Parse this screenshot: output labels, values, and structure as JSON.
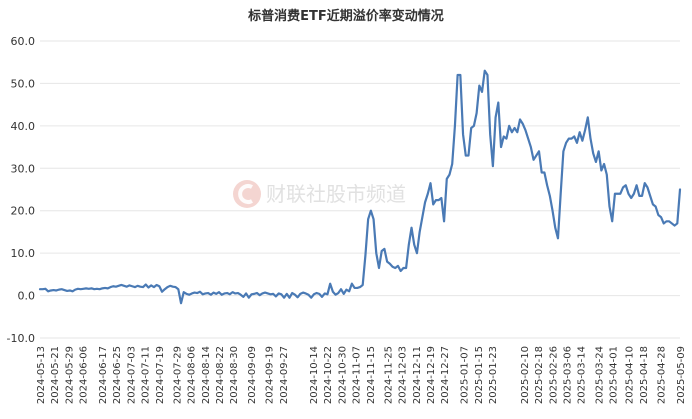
{
  "chart_data": {
    "type": "line",
    "title": "标普消费ETF近期溢价率变动情况",
    "xlabel": "",
    "ylabel": "",
    "ylim": [
      -10,
      60
    ],
    "yticks": [
      "-10.0",
      "0.0",
      "10.0",
      "20.0",
      "30.0",
      "40.0",
      "50.0",
      "60.0"
    ],
    "x_start": "2024-05-13",
    "x_end": "2025-05-09",
    "x_ticks": [
      "2024-05-13",
      "2024-05-21",
      "2024-05-29",
      "2024-06-06",
      "2024-06-17",
      "2024-06-25",
      "2024-07-03",
      "2024-07-11",
      "2024-07-19",
      "2024-07-29",
      "2024-08-06",
      "2024-08-14",
      "2024-08-22",
      "2024-08-30",
      "2024-09-09",
      "2024-09-19",
      "2024-09-27",
      "2024-10-14",
      "2024-10-22",
      "2024-10-30",
      "2024-11-07",
      "2024-11-15",
      "2024-11-25",
      "2024-12-03",
      "2024-12-11",
      "2024-12-19",
      "2024-12-27",
      "2025-01-07",
      "2025-01-15",
      "2025-01-23",
      "2025-02-10",
      "2025-02-18",
      "2025-02-26",
      "2025-03-06",
      "2025-03-14",
      "2025-03-24",
      "2025-04-01",
      "2025-04-10",
      "2025-04-18",
      "2025-04-28",
      "2025-05-09"
    ],
    "grid": true,
    "legend": "none",
    "color": "#4a7ab5",
    "series": [
      {
        "values": [
          1.5,
          1.5,
          1.6,
          1.0,
          1.2,
          1.3,
          1.2,
          1.4,
          1.5,
          1.3,
          1.1,
          1.2,
          1.0,
          1.4,
          1.6,
          1.5,
          1.6,
          1.7,
          1.6,
          1.7,
          1.5,
          1.6,
          1.5,
          1.7,
          1.8,
          1.7,
          2.0,
          2.2,
          2.1,
          2.3,
          2.5,
          2.3,
          2.1,
          2.4,
          2.2,
          2.0,
          2.3,
          2.1,
          2.0,
          2.6,
          1.9,
          2.4,
          2.0,
          2.5,
          2.2,
          0.9,
          1.5,
          2.0,
          2.3,
          2.1,
          2.0,
          1.5,
          -1.8,
          0.8,
          0.4,
          0.2,
          0.5,
          0.7,
          0.6,
          0.9,
          0.3,
          0.5,
          0.6,
          0.2,
          0.7,
          0.4,
          0.8,
          0.2,
          0.5,
          0.6,
          0.3,
          0.8,
          0.5,
          0.6,
          0.2,
          -0.3,
          0.5,
          -0.5,
          0.3,
          0.4,
          0.6,
          0.1,
          0.5,
          0.7,
          0.5,
          0.3,
          0.4,
          -0.2,
          0.5,
          0.3,
          -0.5,
          0.4,
          -0.5,
          0.6,
          0.2,
          -0.4,
          0.4,
          0.7,
          0.5,
          0.2,
          -0.5,
          0.3,
          0.6,
          0.4,
          -0.3,
          0.5,
          0.3,
          2.8,
          0.9,
          0.2,
          0.6,
          1.5,
          0.4,
          1.4,
          1.0,
          2.8,
          1.8,
          1.8,
          2.0,
          2.5,
          9.5,
          18.0,
          20.0,
          18.0,
          10.0,
          6.5,
          10.5,
          11.0,
          8.0,
          7.5,
          6.8,
          6.5,
          7.0,
          5.8,
          6.5,
          6.5,
          12.0,
          16.0,
          12.0,
          10.0,
          15.0,
          18.5,
          22.0,
          24.0,
          26.5,
          21.5,
          22.5,
          22.5,
          23.0,
          17.5,
          27.5,
          28.5,
          31.0,
          40.0,
          52.0,
          52.0,
          38.0,
          33.0,
          33.0,
          39.5,
          40.0,
          43.0,
          49.5,
          48.0,
          53.0,
          52.0,
          38.0,
          30.5,
          42.0,
          45.5,
          35.0,
          37.5,
          37.0,
          40.0,
          38.5,
          39.5,
          38.5,
          41.5,
          40.5,
          39.0,
          37.0,
          35.0,
          32.0,
          33.0,
          34.0,
          29.0,
          29.0,
          26.0,
          23.5,
          20.0,
          16.0,
          13.5,
          24.0,
          34.0,
          36.0,
          37.0,
          37.0,
          37.5,
          36.0,
          38.5,
          36.5,
          39.0,
          42.0,
          37.0,
          33.5,
          31.5,
          34.0,
          29.5,
          31.0,
          28.5,
          21.0,
          17.5,
          24.0,
          24.0,
          24.0,
          25.5,
          26.0,
          24.0,
          23.0,
          24.0,
          26.0,
          23.5,
          23.5,
          26.5,
          25.5,
          23.5,
          21.5,
          21.0,
          19.0,
          18.5,
          17.0,
          17.5,
          17.5,
          17.0,
          16.5,
          17.0,
          25.0
        ]
      }
    ]
  },
  "watermark": {
    "text": "财联社股市频道",
    "logo": "cailian-logo-icon"
  }
}
